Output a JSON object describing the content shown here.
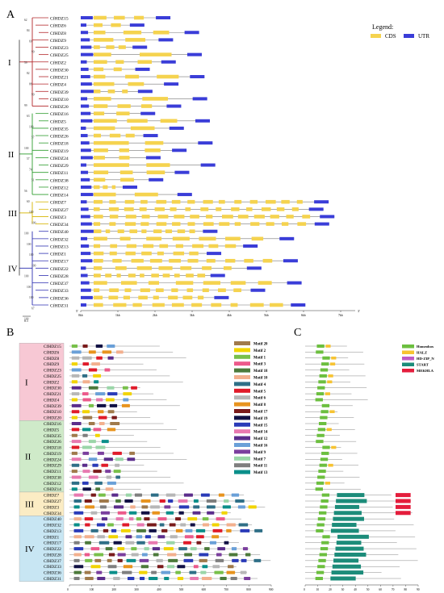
{
  "panel_labels": {
    "A": "A",
    "B": "B",
    "C": "C"
  },
  "panelA": {
    "legend_title": "Legend:",
    "legend_cds": "CDS",
    "legend_utr": "UTR",
    "colors": {
      "cds": "#f5d34f",
      "utr": "#3a3dd8",
      "intron": "#777777",
      "clade1": "#b3262a",
      "clade2": "#2e9d2e",
      "clade3": "#d6b400",
      "clade4": "#2d2fb0"
    },
    "axis_ticks": [
      "0kb",
      "1kb",
      "2kb",
      "3kb",
      "4kb",
      "5kb",
      "6kb",
      "7kb"
    ],
    "axis_end": "3'",
    "axis_start": "5'",
    "scale_label": "0.1",
    "clades": [
      {
        "label": "I",
        "genes": [
          "CfHDZ15",
          "CfHDZ6",
          "CfHDZ8",
          "CfHDZ9",
          "CfHDZ23",
          "CfHDZ25",
          "CfHDZ2",
          "CfHDZ30",
          "CfHDZ21",
          "CfHDZ4",
          "CfHDZ39",
          "CfHDZ10",
          "CfHDZ20"
        ]
      },
      {
        "label": "II",
        "genes": [
          "CfHDZ16",
          "CfHDZ5",
          "CfHDZ35",
          "CfHDZ26",
          "CfHDZ18",
          "CfHDZ19",
          "CfHDZ24",
          "CfHDZ29",
          "CfHDZ11",
          "CfHDZ38",
          "CfHDZ12",
          "CfHDZ14"
        ]
      },
      {
        "label": "III",
        "genes": [
          "CfHDZ7",
          "CfHDZ27",
          "CfHDZ3",
          "CfHDZ34"
        ]
      },
      {
        "label": "IV",
        "genes": [
          "CfHDZ40",
          "CfHDZ32",
          "CfHDZ13",
          "CfHDZ1",
          "CfHDZ17",
          "CfHDZ22",
          "CfHDZ28",
          "CfHDZ37",
          "CfHDZ33",
          "CfHDZ36",
          "CfHDZ31"
        ]
      }
    ],
    "bootstrap_values": [
      "62",
      "84",
      "69",
      "99",
      "59",
      "82",
      "88",
      "99",
      "99",
      "63",
      "100",
      "57",
      "100",
      "57",
      "74",
      "51",
      "56",
      "60",
      "100",
      "100",
      "100",
      "100",
      "100",
      "100",
      "100",
      "100",
      "100",
      "67",
      "100"
    ]
  },
  "panelB": {
    "axis_ticks": [
      "0",
      "100",
      "200",
      "300",
      "400",
      "500",
      "600",
      "700",
      "800",
      "900"
    ],
    "motifs": [
      {
        "name": "Motif 20",
        "color": "#a07a4b"
      },
      {
        "name": "Motif 2",
        "color": "#f2d400"
      },
      {
        "name": "Motif 1",
        "color": "#78c04a"
      },
      {
        "name": "Motif 3",
        "color": "#ec5a8b"
      },
      {
        "name": "Motif 18",
        "color": "#4c7a3b"
      },
      {
        "name": "Motif 10",
        "color": "#f3b08e"
      },
      {
        "name": "Motif 4",
        "color": "#2f6f87"
      },
      {
        "name": "Motif 5",
        "color": "#e01b2a"
      },
      {
        "name": "Motif 6",
        "color": "#b7b7b7"
      },
      {
        "name": "Motif 8",
        "color": "#e8941e"
      },
      {
        "name": "Motif 17",
        "color": "#7a1b1b"
      },
      {
        "name": "Motif 19",
        "color": "#111144"
      },
      {
        "name": "Motif 15",
        "color": "#2a3bb8"
      },
      {
        "name": "Motif 14",
        "color": "#e879b0"
      },
      {
        "name": "Motif 12",
        "color": "#5b2d8c"
      },
      {
        "name": "Motif 16",
        "color": "#6aa0d8"
      },
      {
        "name": "Motif 9",
        "color": "#7b3f9e"
      },
      {
        "name": "Motif 7",
        "color": "#9ad6a8"
      },
      {
        "name": "Motif 11",
        "color": "#7f7f7f"
      },
      {
        "name": "Motif 13",
        "color": "#0b8f8a"
      }
    ]
  },
  "panelC": {
    "axis_ticks": [
      "0",
      "10",
      "20",
      "30",
      "40",
      "50",
      "60",
      "70",
      "80",
      "90"
    ],
    "domains": [
      {
        "name": "Homeobox",
        "color": "#6cbf3f"
      },
      {
        "name": "HALZ",
        "color": "#f7c331"
      },
      {
        "name": "HD-ZIP_N",
        "color": "#c05bc6"
      },
      {
        "name": "START",
        "color": "#1c8c7a"
      },
      {
        "name": "MEKHLA",
        "color": "#e41d3c"
      }
    ]
  }
}
